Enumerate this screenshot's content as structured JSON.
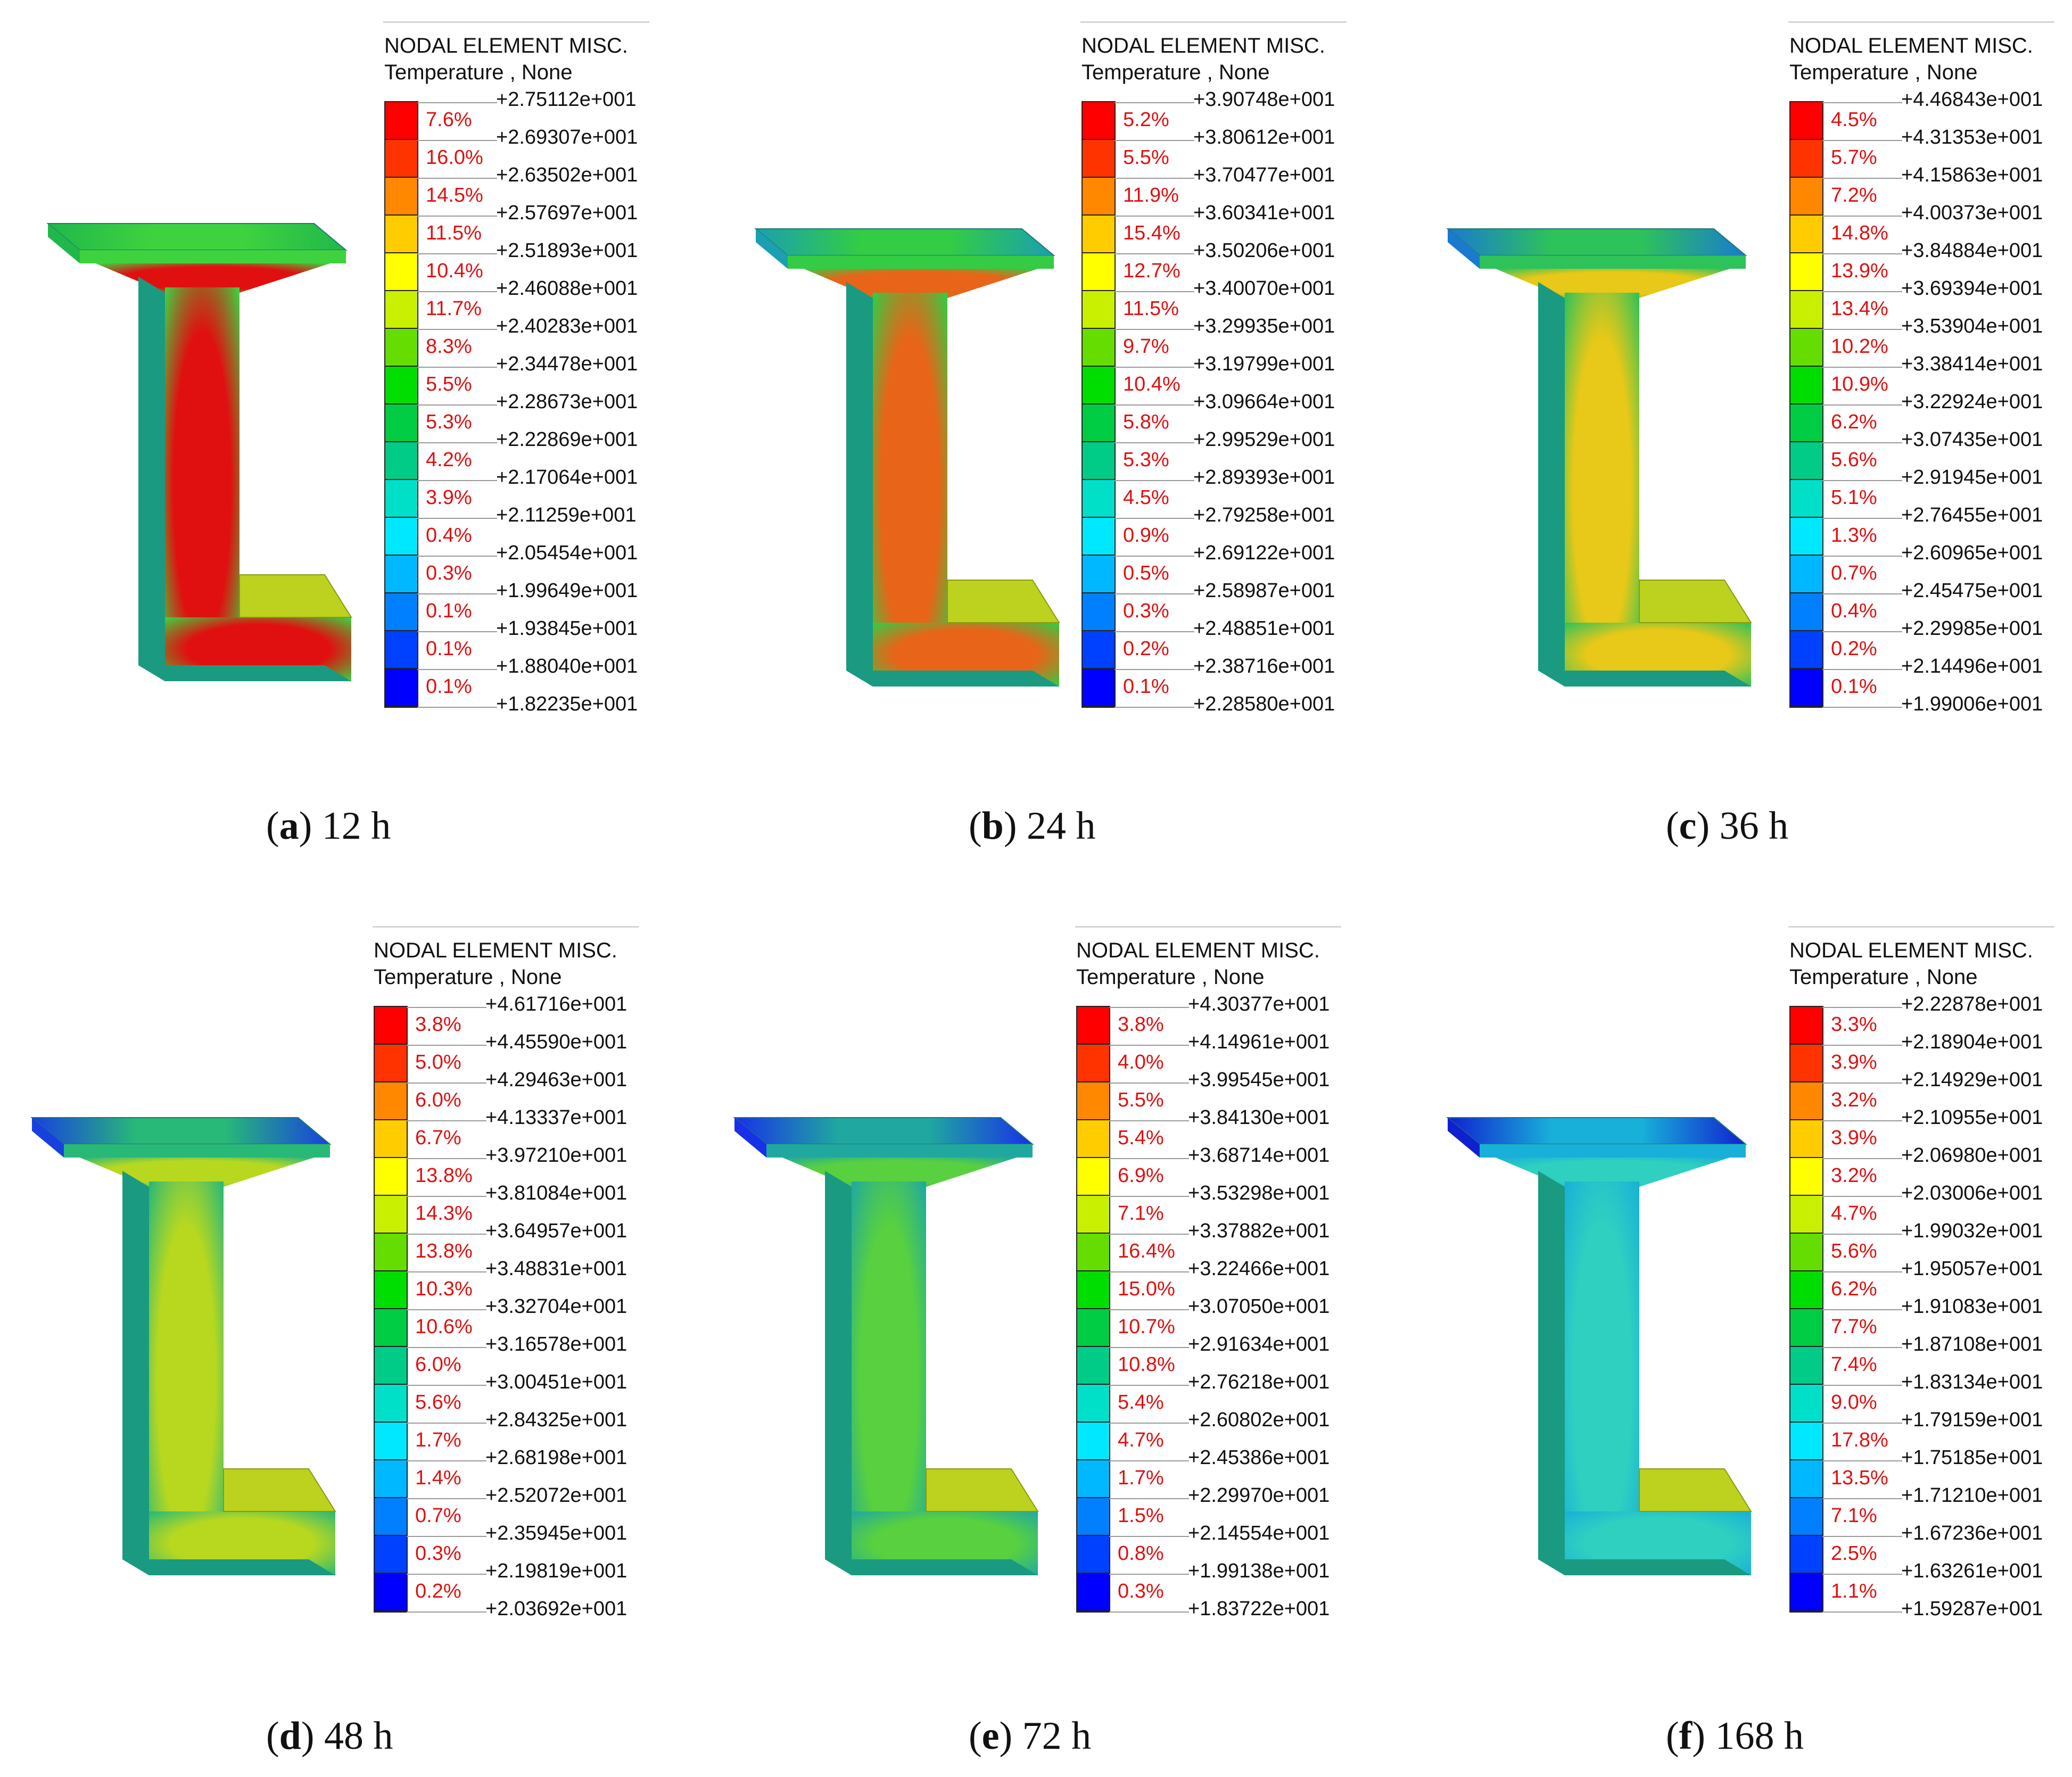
{
  "panels": [
    {
      "id": "a",
      "letter": "a",
      "caption_rest": ") 12 h",
      "legend_title_1": "NODAL ELEMENT MISC.",
      "legend_title_2": "Temperature , None",
      "percentages": [
        "7.6%",
        "16.0%",
        "14.5%",
        "11.5%",
        "10.4%",
        "11.7%",
        "8.3%",
        "5.5%",
        "5.3%",
        "4.2%",
        "3.9%",
        "0.4%",
        "0.3%",
        "0.1%",
        "0.1%",
        "0.1%"
      ],
      "ticks": [
        "+2.75112e+001",
        "+2.69307e+001",
        "+2.63502e+001",
        "+2.57697e+001",
        "+2.51893e+001",
        "+2.46088e+001",
        "+2.40283e+001",
        "+2.34478e+001",
        "+2.28673e+001",
        "+2.22869e+001",
        "+2.17064e+001",
        "+2.11259e+001",
        "+2.05454e+001",
        "+1.99649e+001",
        "+1.93845e+001",
        "+1.88040e+001",
        "+1.82235e+001"
      ],
      "beam_colors": {
        "flange": "#3fd23f",
        "flange_edge": "#20b84a",
        "web": "#e01010",
        "web_side": "#1a9a80",
        "heel": "#bcd21e"
      }
    },
    {
      "id": "b",
      "letter": "b",
      "caption_rest": ") 24 h",
      "legend_title_1": "NODAL ELEMENT MISC.",
      "legend_title_2": "Temperature , None",
      "percentages": [
        "5.2%",
        "5.5%",
        "11.9%",
        "15.4%",
        "12.7%",
        "11.5%",
        "9.7%",
        "10.4%",
        "5.8%",
        "5.3%",
        "4.5%",
        "0.9%",
        "0.5%",
        "0.3%",
        "0.2%",
        "0.1%"
      ],
      "ticks": [
        "+3.90748e+001",
        "+3.80612e+001",
        "+3.70477e+001",
        "+3.60341e+001",
        "+3.50206e+001",
        "+3.40070e+001",
        "+3.29935e+001",
        "+3.19799e+001",
        "+3.09664e+001",
        "+2.99529e+001",
        "+2.89393e+001",
        "+2.79258e+001",
        "+2.69122e+001",
        "+2.58987e+001",
        "+2.48851e+001",
        "+2.38716e+001",
        "+2.28580e+001"
      ],
      "beam_colors": {
        "flange": "#33cc44",
        "flange_edge": "#1aa0b0",
        "web": "#e86418",
        "web_side": "#1a9a80",
        "heel": "#bcd21e"
      }
    },
    {
      "id": "c",
      "letter": "c",
      "caption_rest": ") 36 h",
      "legend_title_1": "NODAL ELEMENT MISC.",
      "legend_title_2": "Temperature , None",
      "percentages": [
        "4.5%",
        "5.7%",
        "7.2%",
        "14.8%",
        "13.9%",
        "13.4%",
        "10.2%",
        "10.9%",
        "6.2%",
        "5.6%",
        "5.1%",
        "1.3%",
        "0.7%",
        "0.4%",
        "0.2%",
        "0.1%"
      ],
      "ticks": [
        "+4.46843e+001",
        "+4.31353e+001",
        "+4.15863e+001",
        "+4.00373e+001",
        "+3.84884e+001",
        "+3.69394e+001",
        "+3.53904e+001",
        "+3.38414e+001",
        "+3.22924e+001",
        "+3.07435e+001",
        "+2.91945e+001",
        "+2.76455e+001",
        "+2.60965e+001",
        "+2.45475e+001",
        "+2.29985e+001",
        "+2.14496e+001",
        "+1.99006e+001"
      ],
      "beam_colors": {
        "flange": "#2ec25a",
        "flange_edge": "#1a7ad0",
        "web": "#e8c818",
        "web_side": "#1a9a80",
        "heel": "#bcd21e"
      }
    },
    {
      "id": "d",
      "letter": "d",
      "caption_rest": ") 48 h",
      "legend_title_1": "NODAL ELEMENT MISC.",
      "legend_title_2": "Temperature , None",
      "percentages": [
        "3.8%",
        "5.0%",
        "6.0%",
        "6.7%",
        "13.8%",
        "14.3%",
        "13.8%",
        "10.3%",
        "10.6%",
        "6.0%",
        "5.6%",
        "1.7%",
        "1.4%",
        "0.7%",
        "0.3%",
        "0.2%"
      ],
      "ticks": [
        "+4.61716e+001",
        "+4.45590e+001",
        "+4.29463e+001",
        "+4.13337e+001",
        "+3.97210e+001",
        "+3.81084e+001",
        "+3.64957e+001",
        "+3.48831e+001",
        "+3.32704e+001",
        "+3.16578e+001",
        "+3.00451e+001",
        "+2.84325e+001",
        "+2.68198e+001",
        "+2.52072e+001",
        "+2.35945e+001",
        "+2.19819e+001",
        "+2.03692e+001"
      ],
      "beam_colors": {
        "flange": "#28b878",
        "flange_edge": "#1840e0",
        "web": "#b8d820",
        "web_side": "#1a9a80",
        "heel": "#bcd21e"
      }
    },
    {
      "id": "e",
      "letter": "e",
      "caption_rest": ") 72 h",
      "legend_title_1": "NODAL ELEMENT MISC.",
      "legend_title_2": "Temperature , None",
      "percentages": [
        "3.8%",
        "4.0%",
        "5.5%",
        "5.4%",
        "6.9%",
        "7.1%",
        "16.4%",
        "15.0%",
        "10.7%",
        "10.8%",
        "5.4%",
        "4.7%",
        "1.7%",
        "1.5%",
        "0.8%",
        "0.3%"
      ],
      "ticks": [
        "+4.30377e+001",
        "+4.14961e+001",
        "+3.99545e+001",
        "+3.84130e+001",
        "+3.68714e+001",
        "+3.53298e+001",
        "+3.37882e+001",
        "+3.22466e+001",
        "+3.07050e+001",
        "+2.91634e+001",
        "+2.76218e+001",
        "+2.60802e+001",
        "+2.45386e+001",
        "+2.29970e+001",
        "+2.14554e+001",
        "+1.99138e+001",
        "+1.83722e+001"
      ],
      "beam_colors": {
        "flange": "#20a8a0",
        "flange_edge": "#1830e8",
        "web": "#58d040",
        "web_side": "#1a9a80",
        "heel": "#bcd21e"
      }
    },
    {
      "id": "f",
      "letter": "f",
      "caption_rest": ") 168 h",
      "legend_title_1": "NODAL ELEMENT MISC.",
      "legend_title_2": "Temperature , None",
      "percentages": [
        "3.3%",
        "3.9%",
        "3.2%",
        "3.9%",
        "3.2%",
        "4.7%",
        "5.6%",
        "6.2%",
        "7.7%",
        "7.4%",
        "9.0%",
        "17.8%",
        "13.5%",
        "7.1%",
        "2.5%",
        "1.1%"
      ],
      "ticks": [
        "+2.22878e+001",
        "+2.18904e+001",
        "+2.14929e+001",
        "+2.10955e+001",
        "+2.06980e+001",
        "+2.03006e+001",
        "+1.99032e+001",
        "+1.95057e+001",
        "+1.91083e+001",
        "+1.87108e+001",
        "+1.83134e+001",
        "+1.79159e+001",
        "+1.75185e+001",
        "+1.71210e+001",
        "+1.67236e+001",
        "+1.63261e+001",
        "+1.59287e+001"
      ],
      "beam_colors": {
        "flange": "#18b0d8",
        "flange_edge": "#1020d0",
        "web": "#30d0c0",
        "web_side": "#1a9a80",
        "heel": "#bcd21e"
      }
    }
  ],
  "scale_colors": [
    "#ff0000",
    "#ff3300",
    "#ff8800",
    "#ffcc00",
    "#ffff00",
    "#c8f000",
    "#66dd00",
    "#00dd00",
    "#00cc44",
    "#00cc88",
    "#00e0c8",
    "#00e8ff",
    "#00b8ff",
    "#0080ff",
    "#0040ff",
    "#0000ff"
  ]
}
